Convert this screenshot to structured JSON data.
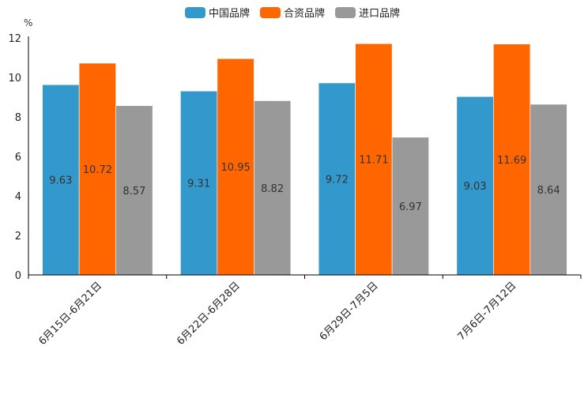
{
  "chart_data": {
    "type": "bar",
    "title": "",
    "ylabel": "%",
    "xlabel": "",
    "ylim": [
      0,
      12
    ],
    "yticks": [
      "0",
      "2",
      "4",
      "6",
      "8",
      "10",
      "12"
    ],
    "categories": [
      "6月15日-6月21日",
      "6月22日-6月28日",
      "6月29日-7月5日",
      "7月6日-7月12日"
    ],
    "series": [
      {
        "name": "中国品牌",
        "color": "#3399cc",
        "values": [
          9.63,
          9.31,
          9.72,
          9.03
        ],
        "labels": [
          "9.63",
          "9.31",
          "9.72",
          "9.03"
        ]
      },
      {
        "name": "合资品牌",
        "color": "#ff6600",
        "values": [
          10.72,
          10.95,
          11.71,
          11.69
        ],
        "labels": [
          "10.72",
          "10.95",
          "11.71",
          "11.69"
        ]
      },
      {
        "name": "进口品牌",
        "color": "#999999",
        "values": [
          8.57,
          8.82,
          6.97,
          8.64
        ],
        "labels": [
          "8.57",
          "8.82",
          "6.97",
          "8.64"
        ]
      }
    ],
    "legend_position": "top-center",
    "grid": false
  }
}
